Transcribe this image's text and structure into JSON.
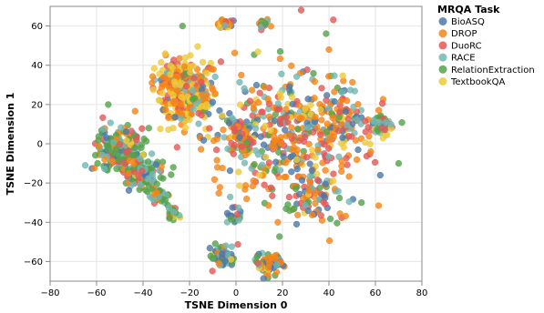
{
  "chart_data": {
    "type": "scatter",
    "title": "",
    "xlabel": "TSNE Dimension 0",
    "ylabel": "TSNE Dimension 1",
    "xlim": [
      -80,
      80
    ],
    "ylim": [
      -70,
      70
    ],
    "xticks": [
      -80,
      -60,
      -40,
      -20,
      0,
      20,
      40,
      60,
      80
    ],
    "yticks": [
      -60,
      -40,
      -20,
      0,
      20,
      40,
      60
    ],
    "grid": true,
    "legend": {
      "title": "MRQA Task",
      "placement": "right"
    },
    "series": [
      {
        "name": "BioASQ",
        "color": "#4c78a8"
      },
      {
        "name": "DROP",
        "color": "#f58518"
      },
      {
        "name": "DuoRC",
        "color": "#e45756"
      },
      {
        "name": "RACE",
        "color": "#72b7b2"
      },
      {
        "name": "RelationExtraction",
        "color": "#54a24b"
      },
      {
        "name": "TextbookQA",
        "color": "#eeca3b"
      }
    ],
    "clusters": [
      {
        "cx": -22,
        "cy": 25,
        "rx": 10,
        "ry": 15,
        "n": 230,
        "mix": [
          0.08,
          0.32,
          0.15,
          0.1,
          0.05,
          0.3
        ]
      },
      {
        "cx": -26,
        "cy": 34,
        "rx": 7,
        "ry": 9,
        "n": 90,
        "mix": [
          0.05,
          0.35,
          0.15,
          0.1,
          0.05,
          0.3
        ]
      },
      {
        "cx": -14,
        "cy": 22,
        "rx": 4,
        "ry": 6,
        "n": 35,
        "mix": [
          0.1,
          0.4,
          0.1,
          0.1,
          0.05,
          0.25
        ]
      },
      {
        "cx": -50,
        "cy": -4,
        "rx": 9,
        "ry": 11,
        "n": 200,
        "mix": [
          0.08,
          0.12,
          0.15,
          0.25,
          0.35,
          0.05
        ]
      },
      {
        "cx": -40,
        "cy": -16,
        "rx": 7,
        "ry": 7,
        "n": 110,
        "mix": [
          0.06,
          0.1,
          0.15,
          0.25,
          0.4,
          0.04
        ]
      },
      {
        "cx": -33,
        "cy": -26,
        "rx": 4,
        "ry": 4,
        "n": 40,
        "mix": [
          0.05,
          0.1,
          0.1,
          0.25,
          0.45,
          0.05
        ]
      },
      {
        "cx": -27,
        "cy": -36,
        "rx": 2,
        "ry": 4,
        "n": 20,
        "mix": [
          0.05,
          0.1,
          0.1,
          0.2,
          0.5,
          0.05
        ]
      },
      {
        "cx": -5,
        "cy": 61,
        "rx": 3,
        "ry": 2.5,
        "n": 40,
        "mix": [
          0.2,
          0.4,
          0.15,
          0.05,
          0.05,
          0.15
        ]
      },
      {
        "cx": 12,
        "cy": 61,
        "rx": 2,
        "ry": 2.5,
        "n": 20,
        "mix": [
          0.1,
          0.3,
          0.1,
          0.1,
          0.3,
          0.1
        ]
      },
      {
        "cx": -6,
        "cy": -57,
        "rx": 5,
        "ry": 6,
        "n": 70,
        "mix": [
          0.3,
          0.05,
          0.1,
          0.3,
          0.2,
          0.05
        ]
      },
      {
        "cx": 14,
        "cy": -61,
        "rx": 5,
        "ry": 5,
        "n": 70,
        "mix": [
          0.3,
          0.3,
          0.1,
          0.1,
          0.1,
          0.1
        ]
      },
      {
        "cx": 63,
        "cy": 9,
        "rx": 4,
        "ry": 4,
        "n": 50,
        "mix": [
          0.05,
          0.05,
          0.1,
          0.3,
          0.35,
          0.15
        ]
      },
      {
        "cx": 22,
        "cy": 5,
        "rx": 30,
        "ry": 32,
        "n": 430,
        "mix": [
          0.14,
          0.32,
          0.2,
          0.12,
          0.1,
          0.12
        ]
      },
      {
        "cx": 45,
        "cy": 12,
        "rx": 10,
        "ry": 16,
        "n": 80,
        "mix": [
          0.15,
          0.25,
          0.25,
          0.15,
          0.1,
          0.1
        ]
      },
      {
        "cx": 35,
        "cy": -28,
        "rx": 12,
        "ry": 10,
        "n": 70,
        "mix": [
          0.2,
          0.25,
          0.25,
          0.1,
          0.1,
          0.1
        ]
      },
      {
        "cx": -1,
        "cy": -37,
        "rx": 3,
        "ry": 3,
        "n": 20,
        "mix": [
          0.5,
          0.1,
          0.1,
          0.1,
          0.1,
          0.1
        ]
      },
      {
        "cx": 1,
        "cy": 4,
        "rx": 6,
        "ry": 9,
        "n": 60,
        "mix": [
          0.1,
          0.35,
          0.2,
          0.1,
          0.15,
          0.1
        ]
      }
    ],
    "isolated_points": [
      {
        "x": -55,
        "y": 20,
        "series": "RelationExtraction"
      },
      {
        "x": -23,
        "y": 60,
        "series": "RelationExtraction"
      },
      {
        "x": 19,
        "y": 47,
        "series": "RelationExtraction"
      },
      {
        "x": 70,
        "y": -10,
        "series": "RelationExtraction"
      },
      {
        "x": 54,
        "y": -30,
        "series": "RelationExtraction"
      },
      {
        "x": -8,
        "y": -12,
        "series": "DROP"
      },
      {
        "x": -27,
        "y": -12,
        "series": "RelationExtraction"
      },
      {
        "x": 18,
        "y": -40,
        "series": "DROP"
      },
      {
        "x": 40,
        "y": 48,
        "series": "DROP"
      },
      {
        "x": 58,
        "y": -4,
        "series": "DROP"
      }
    ]
  }
}
